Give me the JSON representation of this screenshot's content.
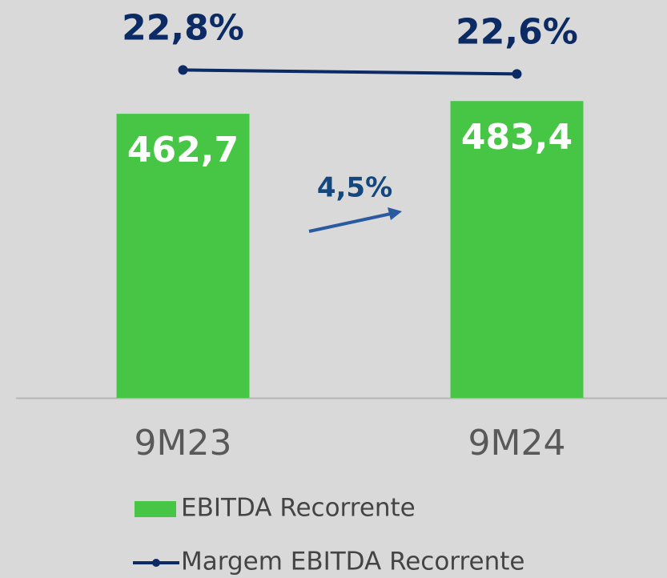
{
  "chart_data": {
    "type": "bar_line",
    "categories": [
      "9M23",
      "9M24"
    ],
    "series": [
      {
        "name": "EBITDA Recorrente",
        "type": "bar",
        "color": "#47c646",
        "values": [
          462.7,
          483.4
        ],
        "value_labels": [
          "462,7",
          "483,4"
        ]
      },
      {
        "name": "Margem EBITDA Recorrente",
        "type": "line",
        "axis": "y2",
        "color": "#0c2a63",
        "values": [
          22.8,
          22.6
        ],
        "value_labels": [
          "22,8%",
          "22,6%"
        ]
      }
    ],
    "ylim": [
      0,
      648
    ],
    "y2lim": [
      6.4,
      26.3
    ],
    "annotations": [
      "4,5%"
    ]
  }
}
